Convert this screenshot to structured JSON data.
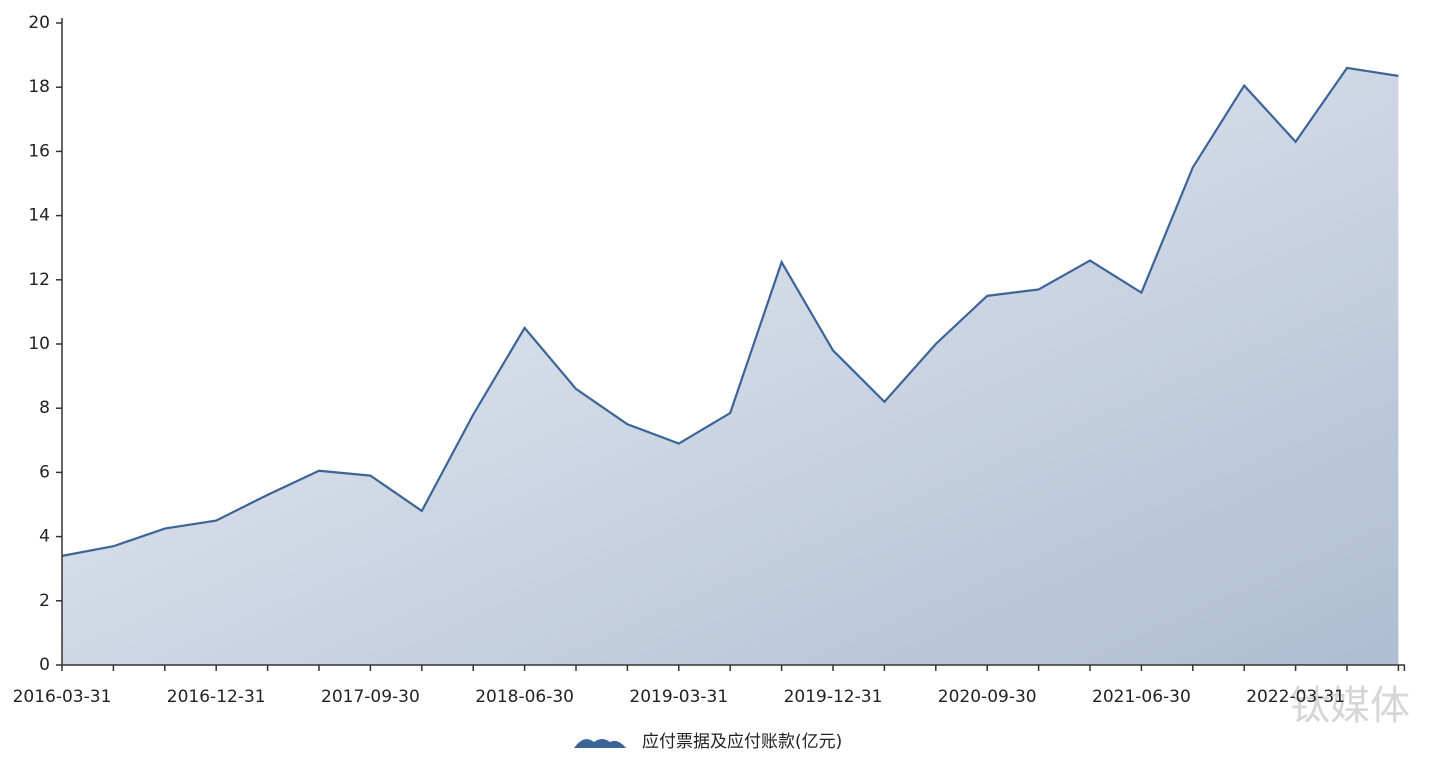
{
  "chart_data": {
    "type": "area",
    "categories": [
      "2016-03-31",
      null,
      null,
      "2016-12-31",
      null,
      null,
      "2017-09-30",
      null,
      null,
      "2018-06-30",
      null,
      null,
      "2019-03-31",
      null,
      null,
      "2019-12-31",
      null,
      null,
      "2020-09-30",
      null,
      null,
      "2021-06-30",
      null,
      null,
      "2022-03-31",
      null,
      null
    ],
    "series": [
      {
        "name": "应付票据及应付账款(亿元)",
        "color": "#3d6496",
        "values": [
          3.4,
          3.7,
          4.25,
          4.5,
          5.3,
          6.05,
          5.9,
          4.8,
          7.8,
          10.5,
          8.6,
          7.5,
          6.9,
          7.85,
          12.55,
          9.8,
          8.2,
          10.0,
          11.5,
          11.7,
          12.6,
          11.6,
          15.5,
          18.05,
          16.3,
          18.6,
          18.35
        ]
      }
    ],
    "ylim": [
      0,
      20
    ],
    "yticks": [
      0,
      2,
      4,
      6,
      8,
      10,
      12,
      14,
      16,
      18,
      20
    ],
    "legend": "bottom",
    "watermark": "钛媒体"
  }
}
